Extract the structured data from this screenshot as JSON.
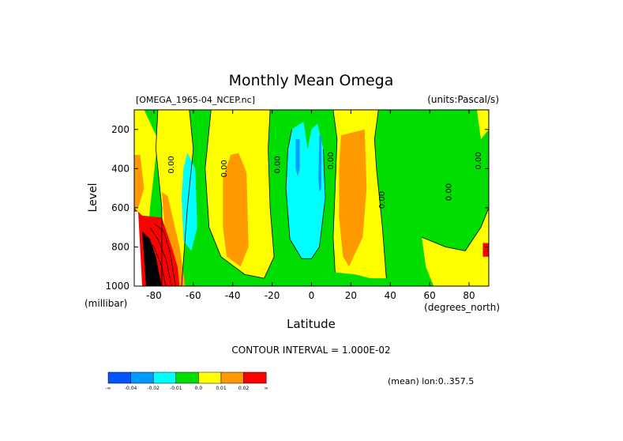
{
  "chart_data": {
    "type": "heatmap",
    "title": "Monthly Mean Omega",
    "file_label": "[OMEGA_1965-04_NCEP.nc]",
    "units_label": "(units:Pascal/s)",
    "xlabel": "Latitude",
    "x_units": "(degrees_north)",
    "ylabel": "Level",
    "y_units": "(millibar)",
    "x_ticks": [
      "-80",
      "-60",
      "-40",
      "-20",
      "0",
      "20",
      "40",
      "60",
      "80"
    ],
    "x_tick_values": [
      -80,
      -60,
      -40,
      -20,
      0,
      20,
      40,
      60,
      80
    ],
    "y_ticks": [
      "200",
      "400",
      "600",
      "800",
      "1000"
    ],
    "y_tick_values": [
      200,
      400,
      600,
      800,
      1000
    ],
    "xlim": [
      -90,
      90
    ],
    "ylim": [
      1000,
      100
    ],
    "contour_interval_text": "CONTOUR INTERVAL = 1.000E-02",
    "mean_text": "(mean) lon:0..357.5",
    "contour_labels": [
      {
        "text": "0.00",
        "x": -70,
        "y": 380
      },
      {
        "text": "0.00",
        "x": -43,
        "y": 400
      },
      {
        "text": "0.00",
        "x": -16,
        "y": 380
      },
      {
        "text": "0.00",
        "x": 11,
        "y": 360
      },
      {
        "text": "0.00",
        "x": 37,
        "y": 560
      },
      {
        "text": "0.00",
        "x": 71,
        "y": 520
      },
      {
        "text": "0.00",
        "x": 86,
        "y": 360
      }
    ],
    "regions": [
      {
        "color": "#00dd00",
        "pts": [
          [
            -90,
            100
          ],
          [
            90,
            100
          ],
          [
            90,
            1000
          ],
          [
            -90,
            1000
          ]
        ]
      },
      {
        "color": "#ffff00",
        "pts": [
          [
            -90,
            100
          ],
          [
            -85,
            100
          ],
          [
            -78,
            250
          ],
          [
            -82,
            600
          ],
          [
            -85,
            1000
          ],
          [
            -90,
            1000
          ]
        ]
      },
      {
        "color": "#ffff00",
        "pts": [
          [
            -78,
            100
          ],
          [
            -62,
            100
          ],
          [
            -60,
            300
          ],
          [
            -63,
            600
          ],
          [
            -66,
            1000
          ],
          [
            -76,
            1000
          ],
          [
            -76,
            600
          ],
          [
            -79,
            300
          ]
        ]
      },
      {
        "color": "#ffff00",
        "pts": [
          [
            -51,
            100
          ],
          [
            -21,
            100
          ],
          [
            -22,
            300
          ],
          [
            -21,
            600
          ],
          [
            -19,
            850
          ],
          [
            -24,
            960
          ],
          [
            -34,
            940
          ],
          [
            -46,
            850
          ],
          [
            -52,
            700
          ],
          [
            -54,
            400
          ]
        ]
      },
      {
        "color": "#ffff00",
        "pts": [
          [
            11,
            100
          ],
          [
            34,
            100
          ],
          [
            32,
            250
          ],
          [
            33,
            400
          ],
          [
            36,
            700
          ],
          [
            38,
            960
          ],
          [
            30,
            960
          ],
          [
            22,
            940
          ],
          [
            12,
            930
          ],
          [
            11,
            750
          ],
          [
            12,
            500
          ],
          [
            13,
            250
          ]
        ]
      },
      {
        "color": "#ffff00",
        "pts": [
          [
            56,
            750
          ],
          [
            68,
            800
          ],
          [
            78,
            820
          ],
          [
            86,
            700
          ],
          [
            90,
            600
          ],
          [
            90,
            1000
          ],
          [
            62,
            1000
          ],
          [
            58,
            900
          ]
        ]
      },
      {
        "color": "#ffff00",
        "pts": [
          [
            84,
            100
          ],
          [
            90,
            100
          ],
          [
            90,
            200
          ],
          [
            86,
            250
          ]
        ]
      },
      {
        "color": "#ff9900",
        "pts": [
          [
            -90,
            330
          ],
          [
            -87,
            330
          ],
          [
            -85,
            500
          ],
          [
            -88,
            600
          ],
          [
            -90,
            600
          ]
        ]
      },
      {
        "color": "#ff9900",
        "pts": [
          [
            -37,
            320
          ],
          [
            -33,
            420
          ],
          [
            -32,
            800
          ],
          [
            -36,
            900
          ],
          [
            -43,
            850
          ],
          [
            -45,
            700
          ],
          [
            -45,
            450
          ],
          [
            -41,
            330
          ]
        ]
      },
      {
        "color": "#ff9900",
        "pts": [
          [
            15,
            230
          ],
          [
            27,
            200
          ],
          [
            28,
            500
          ],
          [
            26,
            750
          ],
          [
            19,
            900
          ],
          [
            16,
            850
          ],
          [
            14,
            650
          ],
          [
            14,
            400
          ]
        ]
      },
      {
        "color": "#ff9900",
        "pts": [
          [
            -76,
            520
          ],
          [
            -73,
            540
          ],
          [
            -67,
            800
          ],
          [
            -64,
            1000
          ],
          [
            -72,
            1000
          ]
        ]
      },
      {
        "color": "#00ffff",
        "pts": [
          [
            -63,
            320
          ],
          [
            -59,
            400
          ],
          [
            -58,
            700
          ],
          [
            -61,
            820
          ],
          [
            -65,
            770
          ],
          [
            -66,
            550
          ],
          [
            -65,
            400
          ]
        ]
      },
      {
        "color": "#00ffff",
        "pts": [
          [
            -10,
            200
          ],
          [
            -4,
            160
          ],
          [
            -2,
            300
          ],
          [
            0,
            200
          ],
          [
            3,
            170
          ],
          [
            6,
            300
          ],
          [
            7,
            550
          ],
          [
            4,
            800
          ],
          [
            0,
            860
          ],
          [
            -5,
            860
          ],
          [
            -11,
            760
          ],
          [
            -13,
            500
          ],
          [
            -12,
            300
          ]
        ]
      },
      {
        "color": "#0099ff",
        "pts": [
          [
            -8,
            250
          ],
          [
            -6,
            250
          ],
          [
            -6,
            400
          ],
          [
            -7,
            440
          ],
          [
            -8,
            400
          ]
        ]
      },
      {
        "color": "#0099ff",
        "pts": [
          [
            4,
            230
          ],
          [
            5,
            230
          ],
          [
            5,
            500
          ],
          [
            4,
            520
          ],
          [
            3.5,
            450
          ]
        ]
      },
      {
        "color": "#ff0000",
        "pts": [
          [
            -90,
            600
          ],
          [
            -86,
            640
          ],
          [
            -76,
            650
          ],
          [
            -71,
            800
          ],
          [
            -68,
            900
          ],
          [
            -67,
            1000
          ],
          [
            -90,
            1000
          ]
        ]
      },
      {
        "color": "#ff0000",
        "pts": [
          [
            87,
            780
          ],
          [
            90,
            780
          ],
          [
            90,
            850
          ],
          [
            87,
            850
          ]
        ]
      },
      {
        "color": "#ffffff",
        "pts": [
          [
            -90,
            620
          ],
          [
            -88,
            620
          ],
          [
            -86,
            1000
          ],
          [
            -90,
            1000
          ]
        ]
      },
      {
        "color": "#000000",
        "pts": [
          [
            -86,
            720
          ],
          [
            -82,
            760
          ],
          [
            -79,
            850
          ],
          [
            -76,
            1000
          ],
          [
            -84,
            1000
          ]
        ]
      }
    ],
    "contour_lines": [
      [
        [
          -78,
          100
        ],
        [
          -79,
          300
        ],
        [
          -76,
          600
        ],
        [
          -76,
          1000
        ]
      ],
      [
        [
          -62,
          100
        ],
        [
          -60,
          300
        ],
        [
          -63,
          600
        ],
        [
          -66,
          1000
        ]
      ],
      [
        [
          -51,
          100
        ],
        [
          -54,
          400
        ],
        [
          -52,
          700
        ],
        [
          -46,
          850
        ],
        [
          -34,
          940
        ],
        [
          -24,
          960
        ]
      ],
      [
        [
          -21,
          100
        ],
        [
          -22,
          300
        ],
        [
          -21,
          600
        ],
        [
          -19,
          850
        ],
        [
          -24,
          960
        ]
      ],
      [
        [
          -10,
          200
        ],
        [
          -12,
          300
        ],
        [
          -13,
          500
        ],
        [
          -11,
          760
        ],
        [
          -5,
          860
        ],
        [
          0,
          860
        ],
        [
          4,
          800
        ],
        [
          7,
          550
        ],
        [
          6,
          300
        ]
      ],
      [
        [
          11,
          100
        ],
        [
          13,
          250
        ],
        [
          12,
          500
        ],
        [
          11,
          750
        ],
        [
          12,
          930
        ]
      ],
      [
        [
          34,
          100
        ],
        [
          32,
          250
        ],
        [
          33,
          400
        ],
        [
          36,
          700
        ],
        [
          38,
          960
        ]
      ],
      [
        [
          56,
          750
        ],
        [
          68,
          800
        ],
        [
          78,
          820
        ],
        [
          86,
          700
        ],
        [
          90,
          600
        ]
      ],
      [
        [
          -84,
          760
        ],
        [
          -80,
          800
        ],
        [
          -76,
          900
        ],
        [
          -74,
          1000
        ]
      ],
      [
        [
          -82,
          700
        ],
        [
          -78,
          760
        ],
        [
          -74,
          860
        ],
        [
          -71,
          1000
        ]
      ],
      [
        [
          -80,
          680
        ],
        [
          -75,
          720
        ],
        [
          -72,
          820
        ],
        [
          -69,
          1000
        ]
      ]
    ],
    "legend": {
      "colors": [
        "#0055ff",
        "#0099ff",
        "#00ffff",
        "#00dd00",
        "#ffff00",
        "#ff9900",
        "#ff0000"
      ],
      "labels": [
        "-∞",
        "-0.04",
        "-0.02",
        "-0.01",
        "0.0",
        "0.01",
        "0.02",
        "∞"
      ]
    }
  }
}
